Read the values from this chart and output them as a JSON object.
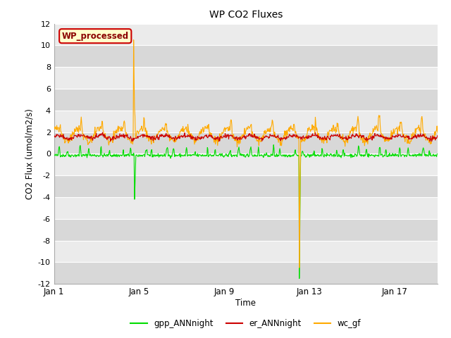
{
  "title": "WP CO2 Fluxes",
  "xlabel": "Time",
  "ylabel": "CO2 Flux (umol/m2/s)",
  "ylim": [
    -12,
    12
  ],
  "yticks": [
    -12,
    -10,
    -8,
    -6,
    -4,
    -2,
    0,
    2,
    4,
    6,
    8,
    10,
    12
  ],
  "xtick_labels": [
    "Jan 1",
    "Jan 5",
    "Jan 9",
    "Jan 13",
    "Jan 17"
  ],
  "xtick_positions": [
    0,
    4,
    8,
    12,
    16
  ],
  "n_days": 18,
  "bg_color_light": "#ebebeb",
  "bg_color_dark": "#d8d8d8",
  "line_green": "#00dd00",
  "line_red": "#cc0000",
  "line_orange": "#ffaa00",
  "legend_text": "WP_processed",
  "legend_fg": "#8b0000",
  "legend_bg": "#ffffcc",
  "legend_edge": "#cc0000",
  "gpp_base": -0.15,
  "er_base": 1.55,
  "wc_base": 1.75
}
